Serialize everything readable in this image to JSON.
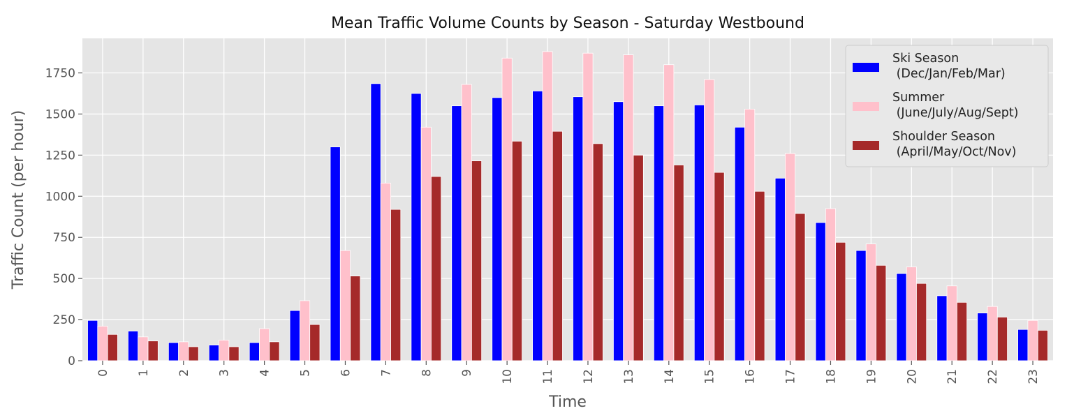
{
  "chart_data": {
    "type": "bar",
    "title": "Mean Traffic Volume Counts by Season - Saturday Westbound",
    "xlabel": "Time",
    "ylabel": "Traffic Count (per hour)",
    "categories": [
      "0",
      "1",
      "2",
      "3",
      "4",
      "5",
      "6",
      "7",
      "8",
      "9",
      "10",
      "11",
      "12",
      "13",
      "14",
      "15",
      "16",
      "17",
      "18",
      "19",
      "20",
      "21",
      "22",
      "23"
    ],
    "ylim": [
      0,
      1960
    ],
    "yticks": [
      0,
      250,
      500,
      750,
      1000,
      1250,
      1500,
      1750
    ],
    "grid": true,
    "legend_position": "top-right",
    "series": [
      {
        "name": "Ski Season\n (Dec/Jan/Feb/Mar)",
        "color": "#0000ff",
        "values": [
          245,
          180,
          110,
          95,
          110,
          305,
          1300,
          1685,
          1625,
          1550,
          1600,
          1640,
          1605,
          1575,
          1550,
          1555,
          1420,
          1110,
          840,
          670,
          530,
          395,
          290,
          190
        ]
      },
      {
        "name": "Summer\n (June/July/Aug/Sept)",
        "color": "#ffc0cb",
        "values": [
          210,
          145,
          115,
          125,
          195,
          365,
          670,
          1080,
          1420,
          1680,
          1840,
          1880,
          1870,
          1860,
          1800,
          1710,
          1530,
          1260,
          925,
          710,
          570,
          455,
          330,
          245
        ]
      },
      {
        "name": "Shoulder Season\n (April/May/Oct/Nov)",
        "color": "#a52a2a",
        "values": [
          160,
          120,
          85,
          85,
          115,
          220,
          515,
          920,
          1120,
          1215,
          1335,
          1395,
          1320,
          1250,
          1190,
          1145,
          1030,
          895,
          720,
          580,
          470,
          355,
          265,
          185
        ]
      }
    ]
  }
}
